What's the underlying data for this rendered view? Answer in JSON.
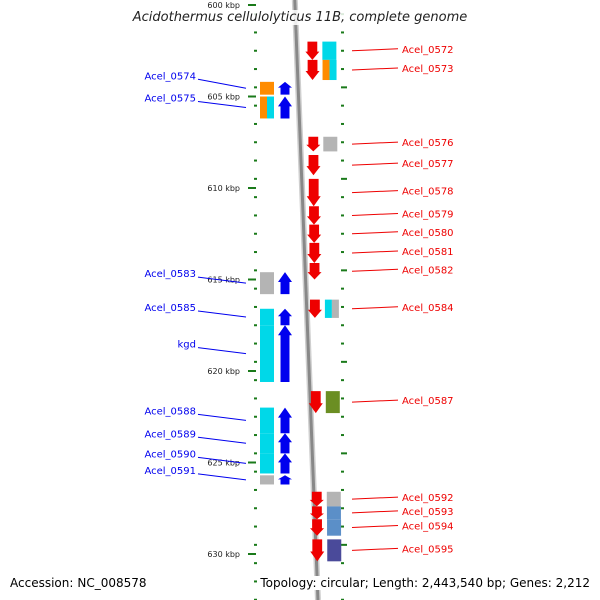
{
  "title": "Acidothermus cellulolyticus 11B, complete genome",
  "footer": {
    "accession_label": "Accession:",
    "accession": "NC_008578",
    "stats": "Topology: circular; Length: 2,443,540 bp; Genes: 2,212"
  },
  "colors": {
    "forward_arrow": "#0000ee",
    "reverse_arrow": "#ee0000",
    "backbone": "#888888",
    "tick": "#1a7a1a",
    "gene_cyan": "#00d8e8",
    "gene_orange": "#ff8c00",
    "gene_grey": "#b4b4b4",
    "gene_olive": "#6b8e23",
    "gene_steelblue": "#5b8fc8",
    "gene_slate": "#4a4a9a"
  },
  "scale_ticks": [
    {
      "label": "600 kbp",
      "kbp": 600
    },
    {
      "label": "605 kbp",
      "kbp": 605
    },
    {
      "label": "610 kbp",
      "kbp": 610
    },
    {
      "label": "615 kbp",
      "kbp": 615
    },
    {
      "label": "620 kbp",
      "kbp": 620
    },
    {
      "label": "625 kbp",
      "kbp": 625
    },
    {
      "label": "630 kbp",
      "kbp": 630
    }
  ],
  "forward_genes": [
    {
      "name": "Acel_0574",
      "cog": "gene_orange",
      "start": 604.2,
      "end": 604.9
    },
    {
      "name": "Acel_0575",
      "cog": "gene_orange",
      "start": 605.0,
      "end": 606.2,
      "second_cog": "gene_cyan"
    },
    {
      "name": "Acel_0583",
      "cog": "gene_grey",
      "start": 614.6,
      "end": 615.8
    },
    {
      "name": "Acel_0585",
      "cog": "gene_cyan",
      "start": 616.6,
      "end": 617.5
    },
    {
      "name": "kgd",
      "cog": "gene_cyan",
      "start": 617.5,
      "end": 620.6
    },
    {
      "name": "Acel_0588",
      "cog": "gene_cyan",
      "start": 622.0,
      "end": 623.4
    },
    {
      "name": "Acel_0589",
      "cog": "gene_cyan",
      "start": 623.4,
      "end": 624.5
    },
    {
      "name": "Acel_0590",
      "cog": "gene_cyan",
      "start": 624.5,
      "end": 625.6
    },
    {
      "name": "Acel_0591",
      "cog": "gene_grey",
      "start": 625.7,
      "end": 626.2
    }
  ],
  "reverse_genes": [
    {
      "name": "Acel_0572",
      "cog": "gene_cyan",
      "start": 602.0,
      "end": 603.0
    },
    {
      "name": "Acel_0573",
      "cog": "gene_orange",
      "start": 603.0,
      "end": 604.1,
      "second_cog": "gene_cyan"
    },
    {
      "name": "Acel_0576",
      "cog": "gene_grey",
      "start": 607.2,
      "end": 608.0
    },
    {
      "name": "Acel_0577",
      "cog": "",
      "start": 608.2,
      "end": 609.3
    },
    {
      "name": "Acel_0578",
      "cog": "",
      "start": 609.5,
      "end": 611.0
    },
    {
      "name": "Acel_0579",
      "cog": "",
      "start": 611.0,
      "end": 612.0
    },
    {
      "name": "Acel_0580",
      "cog": "",
      "start": 612.0,
      "end": 613.0
    },
    {
      "name": "Acel_0581",
      "cog": "",
      "start": 613.0,
      "end": 614.1
    },
    {
      "name": "Acel_0582",
      "cog": "",
      "start": 614.1,
      "end": 615.0
    },
    {
      "name": "Acel_0584",
      "cog": "gene_cyan",
      "start": 616.1,
      "end": 617.1,
      "second_cog": "gene_grey"
    },
    {
      "name": "Acel_0587",
      "cog": "gene_olive",
      "start": 621.1,
      "end": 622.3
    },
    {
      "name": "Acel_0592",
      "cog": "gene_grey",
      "start": 626.6,
      "end": 627.4
    },
    {
      "name": "Acel_0593",
      "cog": "gene_steelblue",
      "start": 627.4,
      "end": 628.1
    },
    {
      "name": "Acel_0594",
      "cog": "gene_steelblue",
      "start": 628.1,
      "end": 629.0
    },
    {
      "name": "Acel_0595",
      "cog": "gene_slate",
      "start": 629.2,
      "end": 630.4
    }
  ]
}
